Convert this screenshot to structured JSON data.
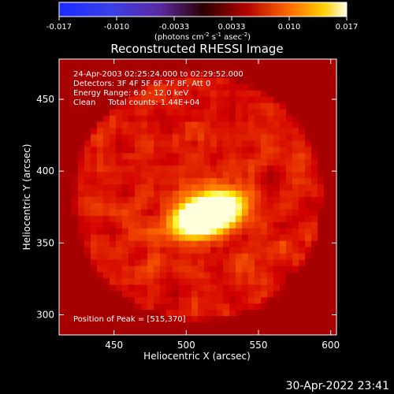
{
  "chart_data": {
    "type": "heatmap",
    "title": "Reconstructed RHESSI Image",
    "colorbar": {
      "ticks": [
        "-0.017",
        "-0.010",
        "-0.0033",
        "0.0033",
        "0.010",
        "0.017"
      ],
      "range": [
        -0.017,
        0.017
      ],
      "unit_label": "(photons cm",
      "unit_sup1": "-2",
      "unit_mid": " s",
      "unit_sup2": "-1",
      "unit_mid2": " asec",
      "unit_sup3": "-2",
      "unit_end": ")"
    },
    "xlabel": "Heliocentric X (arcsec)",
    "ylabel": "Heliocentric Y (arcsec)",
    "xlim": [
      412,
      604
    ],
    "ylim": [
      286,
      478
    ],
    "xticks": [
      450,
      500,
      550,
      600
    ],
    "yticks": [
      300,
      350,
      400,
      450
    ],
    "peak": {
      "x": 515,
      "y": 370,
      "value": 0.017
    },
    "annotations": [
      "24-Apr-2003 02:25:24.000 to 02:29:52.000",
      "Detectors: 3F 4F 5F 6F 7F 8F, Att 0",
      "Energy Range: 6.0 - 12.0 keV",
      "Clean     Total counts: 1.44E+04"
    ],
    "peak_label": "Position of Peak = [515,370]",
    "colormap": "red-temperature",
    "background_colors": [
      "#1b0a4f",
      "#3a1c80",
      "#6a1d6a"
    ]
  },
  "footer": {
    "timestamp": "30-Apr-2022 23:41"
  }
}
